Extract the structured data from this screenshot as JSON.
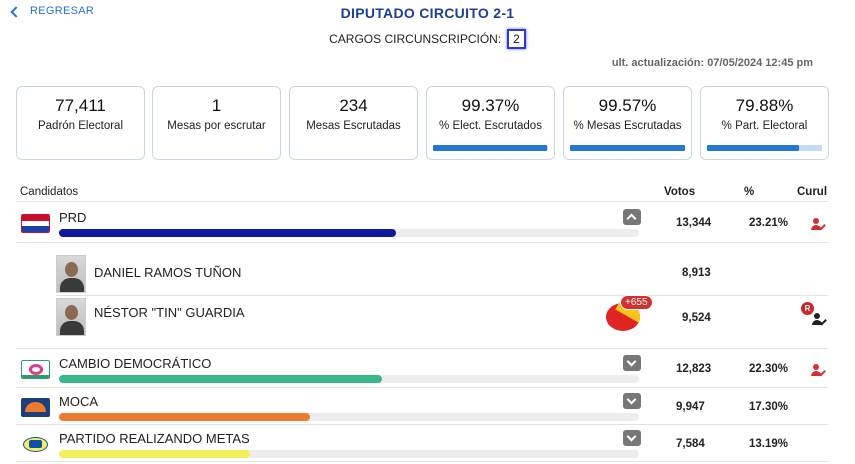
{
  "nav": {
    "back_label": "REGRESAR"
  },
  "header": {
    "title": "DIPUTADO CIRCUITO 2-1",
    "cargos_label": "CARGOS CIRCUNSCRIPCIÓN:",
    "cargos_value": "2",
    "update_label": "ult. actualización: 07/05/2024 12:45 pm"
  },
  "stats": [
    {
      "value": "77,411",
      "label": "Padrón Electoral"
    },
    {
      "value": "1",
      "label": "Mesas por escrutar"
    },
    {
      "value": "234",
      "label": "Mesas Escrutadas"
    },
    {
      "value": "99.37%",
      "label": "% Elect. Escrutados",
      "progress": 99.37,
      "bar_color": "#2477d1"
    },
    {
      "value": "99.57%",
      "label": "% Mesas Escrutadas",
      "progress": 99.57,
      "bar_color": "#2477d1"
    },
    {
      "value": "79.88%",
      "label": "% Part. Electoral",
      "progress": 79.88,
      "bar_color": "#2477d1"
    }
  ],
  "table": {
    "col_candidates": "Candidatos",
    "col_votes": "Votos",
    "col_pct": "%",
    "col_curul": "Curul"
  },
  "parties": [
    {
      "name": "PRD",
      "votes": "13,344",
      "pct": "23.21%",
      "share": 23.21,
      "bar_color": "#0d1aa0",
      "expanded": true,
      "curul": true,
      "logo_color": "#c8102e",
      "candidates": [
        {
          "name": "DANIEL RAMOS TUÑON",
          "votes": "8,913"
        },
        {
          "name": "NÉSTOR \"TIN\" GUARDIA",
          "votes": "9,524",
          "pref_badge": "+655",
          "r_badge": "R",
          "curul": true
        }
      ]
    },
    {
      "name": "CAMBIO DEMOCRÁTICO",
      "votes": "12,823",
      "pct": "22.30%",
      "share": 22.3,
      "bar_color": "#3bb88a",
      "expanded": false,
      "curul": true,
      "logo_color": "#e03a8a"
    },
    {
      "name": "MOCA",
      "votes": "9,947",
      "pct": "17.30%",
      "share": 17.3,
      "bar_color": "#ec7a2f",
      "expanded": false,
      "curul": false,
      "logo_color": "#1d3f7a"
    },
    {
      "name": "PARTIDO REALIZANDO METAS",
      "votes": "7,584",
      "pct": "13.19%",
      "share": 13.19,
      "bar_color": "#f5f05a",
      "expanded": false,
      "curul": false,
      "logo_color": "#0f4fa8"
    }
  ],
  "colors": {
    "accent": "#1c3f94",
    "link": "#2a6fd6",
    "curul_red": "#d32f2f"
  }
}
